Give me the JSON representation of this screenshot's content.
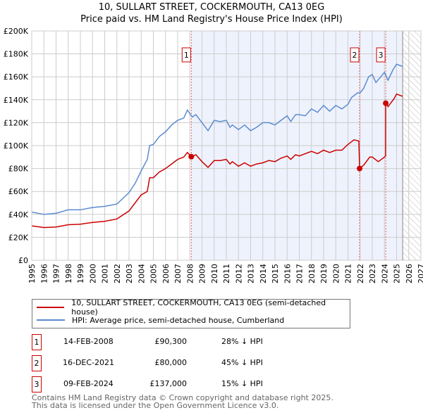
{
  "chart_data": {
    "type": "line",
    "title": "10, SULLART STREET, COCKERMOUTH, CA13 0EG",
    "subtitle": "Price paid vs. HM Land Registry's House Price Index (HPI)",
    "xlim": [
      1995,
      2027
    ],
    "ylim": [
      0,
      200000
    ],
    "x_ticks": [
      "1995",
      "1996",
      "1997",
      "1998",
      "1999",
      "2000",
      "2001",
      "2002",
      "2003",
      "2004",
      "2005",
      "2006",
      "2007",
      "2008",
      "2009",
      "2010",
      "2011",
      "2012",
      "2013",
      "2014",
      "2015",
      "2016",
      "2017",
      "2018",
      "2019",
      "2020",
      "2021",
      "2022",
      "2023",
      "2024",
      "2025",
      "2026",
      "2027"
    ],
    "y_ticks": [
      {
        "v": 0,
        "l": "£0"
      },
      {
        "v": 20000,
        "l": "£20K"
      },
      {
        "v": 40000,
        "l": "£40K"
      },
      {
        "v": 60000,
        "l": "£60K"
      },
      {
        "v": 80000,
        "l": "£80K"
      },
      {
        "v": 100000,
        "l": "£100K"
      },
      {
        "v": 120000,
        "l": "£120K"
      },
      {
        "v": 140000,
        "l": "£140K"
      },
      {
        "v": 160000,
        "l": "£160K"
      },
      {
        "v": 180000,
        "l": "£180K"
      },
      {
        "v": 200000,
        "l": "£200K"
      }
    ],
    "shaded_range": [
      2008.12,
      2025.5
    ],
    "forecast_hatch_from": 2025.5,
    "series": [
      {
        "name": "10, SULLART STREET, COCKERMOUTH, CA13 0EG (semi-detached house)",
        "color": "#cc0000",
        "x": [
          1995,
          1996,
          1997,
          1998,
          1999,
          2000,
          2001,
          2002,
          2003,
          2003.5,
          2004,
          2004.5,
          2004.7,
          2005,
          2005.5,
          2006,
          2006.5,
          2007,
          2007.5,
          2007.8,
          2008.12,
          2008.5,
          2009,
          2009.5,
          2010,
          2010.5,
          2011,
          2011.3,
          2011.5,
          2012,
          2012.5,
          2013,
          2013.5,
          2014,
          2014.5,
          2015,
          2015.5,
          2016,
          2016.3,
          2016.7,
          2017,
          2018,
          2018.5,
          2019,
          2019.5,
          2020,
          2020.5,
          2021,
          2021.5,
          2021.9,
          2021.96,
          2022.3,
          2022.8,
          2023,
          2023.5,
          2024,
          2024.1,
          2024.11,
          2024.3,
          2024.8,
          2025,
          2025.5
        ],
        "y": [
          30,
          28.5,
          29,
          31,
          31.5,
          33,
          34,
          36,
          43,
          50,
          57,
          60,
          72,
          72,
          77,
          80,
          84,
          88,
          90,
          94,
          90.3,
          92,
          86,
          81,
          87,
          87,
          88,
          84,
          86,
          82,
          85,
          82,
          84,
          85,
          87,
          86,
          89,
          91,
          88,
          92,
          91,
          95,
          93,
          96,
          94,
          96,
          96,
          101,
          105,
          104,
          80,
          83,
          90,
          90,
          86,
          90,
          91,
          137,
          134,
          141,
          145,
          143
        ]
      },
      {
        "name": "HPI: Average price, semi-detached house, Cumberland",
        "color": "#5b8bd0",
        "x": [
          1995,
          1996,
          1997,
          1998,
          1999,
          2000,
          2001,
          2002,
          2002.5,
          2003,
          2003.5,
          2004,
          2004.5,
          2004.7,
          2005,
          2005.5,
          2006,
          2006.5,
          2007,
          2007.5,
          2007.8,
          2008.2,
          2008.5,
          2009,
          2009.5,
          2010,
          2010.5,
          2011,
          2011.3,
          2011.5,
          2012,
          2012.5,
          2013,
          2013.5,
          2014,
          2014.5,
          2015,
          2015.5,
          2016,
          2016.3,
          2016.7,
          2017,
          2017.5,
          2018,
          2018.5,
          2019,
          2019.5,
          2020,
          2020.5,
          2021,
          2021.3,
          2021.8,
          2022,
          2022.3,
          2022.7,
          2023,
          2023.3,
          2023.7,
          2024,
          2024.3,
          2024.7,
          2025,
          2025.5
        ],
        "y": [
          42,
          40,
          41,
          44,
          44,
          46,
          47,
          49,
          54,
          59,
          67,
          78,
          88,
          100,
          101,
          108,
          112,
          118,
          122,
          124,
          131,
          125,
          127,
          120,
          113,
          122,
          121,
          122,
          116,
          118,
          114,
          118,
          113,
          116,
          120,
          120,
          118,
          122,
          126,
          121,
          127,
          127,
          126,
          132,
          129,
          135,
          130,
          135,
          132,
          136,
          142,
          146,
          146,
          150,
          160,
          162,
          155,
          160,
          164,
          157,
          166,
          171,
          169
        ]
      }
    ],
    "y_units": "thousands GBP",
    "sales": [
      {
        "n": "1",
        "x": 2008.12,
        "y": 90.3,
        "date": "14-FEB-2008",
        "price": "£90,300",
        "hpi": "28% ↓ HPI"
      },
      {
        "n": "2",
        "x": 2021.96,
        "y": 80,
        "date": "16-DEC-2021",
        "price": "£80,000",
        "hpi": "45% ↓ HPI"
      },
      {
        "n": "3",
        "x": 2024.11,
        "y": 137,
        "date": "09-FEB-2024",
        "price": "£137,000",
        "hpi": "15% ↓ HPI"
      }
    ],
    "footer1": "Contains HM Land Registry data © Crown copyright and database right 2025.",
    "footer2": "This data is licensed under the Open Government Licence v3.0."
  }
}
